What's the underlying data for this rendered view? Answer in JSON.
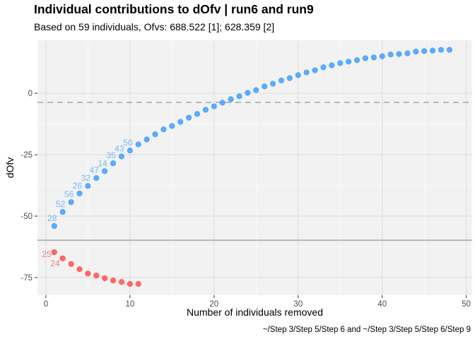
{
  "chart_data": {
    "type": "scatter",
    "title": "Individual contributions to dOfv | run6 and run9",
    "subtitle": "Based on 59 individuals, Ofvs: 688.522 [1]; 628.359 [2]",
    "caption": "~/Step 3/Step 5/Step 6 and ~/Step 3/Step 5/Step 6/Step 9",
    "xlabel": "Number of individuals removed",
    "ylabel": "dOfv",
    "xlim": [
      -1,
      50.7
    ],
    "ylim": [
      -82.2,
      21.6
    ],
    "xticks": [
      0,
      10,
      20,
      30,
      40,
      50
    ],
    "yticks": [
      -75,
      -50,
      -25,
      0
    ],
    "grid": true,
    "background": "#F2F2F2",
    "hlines": [
      {
        "y": -3.7,
        "style": "dashed",
        "color": "#B0B0B0"
      },
      {
        "y": -59.8,
        "style": "solid",
        "color": "#B0B0B0"
      }
    ],
    "series": [
      {
        "color": "#4DA3FF",
        "x": [
          1,
          2,
          3,
          4,
          5,
          6,
          7,
          8,
          9,
          10,
          11,
          12,
          13,
          14,
          15,
          16,
          17,
          18,
          19,
          20,
          21,
          22,
          23,
          24,
          25,
          26,
          27,
          28,
          29,
          30,
          31,
          32,
          33,
          34,
          35,
          36,
          37,
          38,
          39,
          40,
          41,
          42,
          43,
          44,
          45,
          46,
          47,
          48
        ],
        "y": [
          -54.0,
          -48.3,
          -44.3,
          -40.8,
          -37.7,
          -34.5,
          -31.7,
          -28.5,
          -25.7,
          -23.3,
          -20.8,
          -18.8,
          -16.7,
          -14.7,
          -13.3,
          -11.6,
          -9.9,
          -8.4,
          -6.7,
          -5.3,
          -3.8,
          -2.4,
          -1.2,
          0.2,
          1.3,
          2.8,
          3.9,
          5.2,
          6.2,
          7.4,
          8.5,
          9.4,
          10.6,
          11.4,
          12.3,
          12.9,
          13.5,
          14.3,
          14.6,
          15.1,
          15.8,
          16.0,
          16.3,
          17.0,
          17.2,
          17.4,
          17.7,
          17.7
        ],
        "labels": [
          "28",
          "52",
          "56",
          "26",
          "32",
          "47",
          "14",
          "35",
          "43",
          "50"
        ]
      },
      {
        "color": "#FF5A5A",
        "x": [
          1,
          2,
          3,
          4,
          5,
          6,
          7,
          8,
          9,
          10,
          11
        ],
        "y": [
          -64.7,
          -67.2,
          -69.5,
          -71.6,
          -73.4,
          -74.2,
          -75.3,
          -76.2,
          -76.8,
          -77.6,
          -77.6
        ],
        "labels": [
          "25",
          "24"
        ]
      }
    ]
  }
}
